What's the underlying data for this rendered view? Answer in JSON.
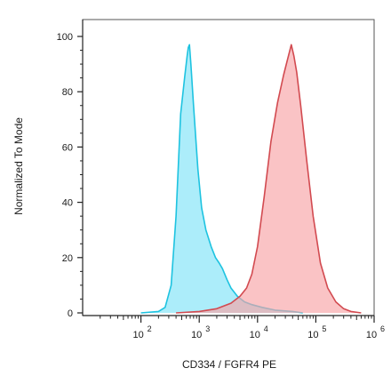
{
  "chart_data": {
    "type": "area",
    "xlabel": "CD334 / FGFR4 PE",
    "ylabel": "Normalized To Mode",
    "x_scale": "log",
    "xlim": [
      10,
      1000000
    ],
    "ylim": [
      0,
      100
    ],
    "x_ticks": [
      {
        "value": 100,
        "base": "10",
        "exp": "2"
      },
      {
        "value": 1000,
        "base": "10",
        "exp": "3"
      },
      {
        "value": 10000,
        "base": "10",
        "exp": "4"
      },
      {
        "value": 100000,
        "base": "10",
        "exp": "5"
      },
      {
        "value": 1000000,
        "base": "10",
        "exp": "6"
      }
    ],
    "y_ticks": [
      "0",
      "20",
      "40",
      "60",
      "80",
      "100"
    ],
    "grid": false,
    "legend": "none",
    "series": [
      {
        "fill": "#7fe3f7",
        "stroke": "#1ec3e0",
        "points": [
          [
            100,
            0
          ],
          [
            200,
            0.5
          ],
          [
            260,
            2
          ],
          [
            330,
            10
          ],
          [
            400,
            35
          ],
          [
            480,
            72
          ],
          [
            560,
            85
          ],
          [
            620,
            93
          ],
          [
            650,
            96
          ],
          [
            680,
            97
          ],
          [
            720,
            90
          ],
          [
            800,
            75
          ],
          [
            950,
            52
          ],
          [
            1100,
            38
          ],
          [
            1300,
            30
          ],
          [
            1600,
            24
          ],
          [
            1900,
            20
          ],
          [
            2200,
            18
          ],
          [
            2500,
            16
          ],
          [
            3000,
            12
          ],
          [
            3500,
            9
          ],
          [
            4500,
            6
          ],
          [
            6000,
            4
          ],
          [
            8000,
            3
          ],
          [
            12000,
            2
          ],
          [
            20000,
            1
          ],
          [
            40000,
            0.5
          ],
          [
            60000,
            0
          ]
        ]
      },
      {
        "fill": "#f7a3a6",
        "stroke": "#d24a50",
        "points": [
          [
            400,
            0
          ],
          [
            1000,
            0.5
          ],
          [
            2000,
            1.5
          ],
          [
            3500,
            3.5
          ],
          [
            5000,
            6
          ],
          [
            6500,
            9
          ],
          [
            8000,
            14
          ],
          [
            10000,
            24
          ],
          [
            13000,
            42
          ],
          [
            17000,
            62
          ],
          [
            22000,
            76
          ],
          [
            28000,
            86
          ],
          [
            33000,
            92
          ],
          [
            38000,
            97
          ],
          [
            42000,
            93
          ],
          [
            47000,
            87
          ],
          [
            55000,
            75
          ],
          [
            70000,
            55
          ],
          [
            90000,
            35
          ],
          [
            120000,
            18
          ],
          [
            160000,
            9
          ],
          [
            220000,
            4
          ],
          [
            300000,
            1.5
          ],
          [
            400000,
            0.5
          ],
          [
            600000,
            0
          ]
        ]
      }
    ]
  }
}
